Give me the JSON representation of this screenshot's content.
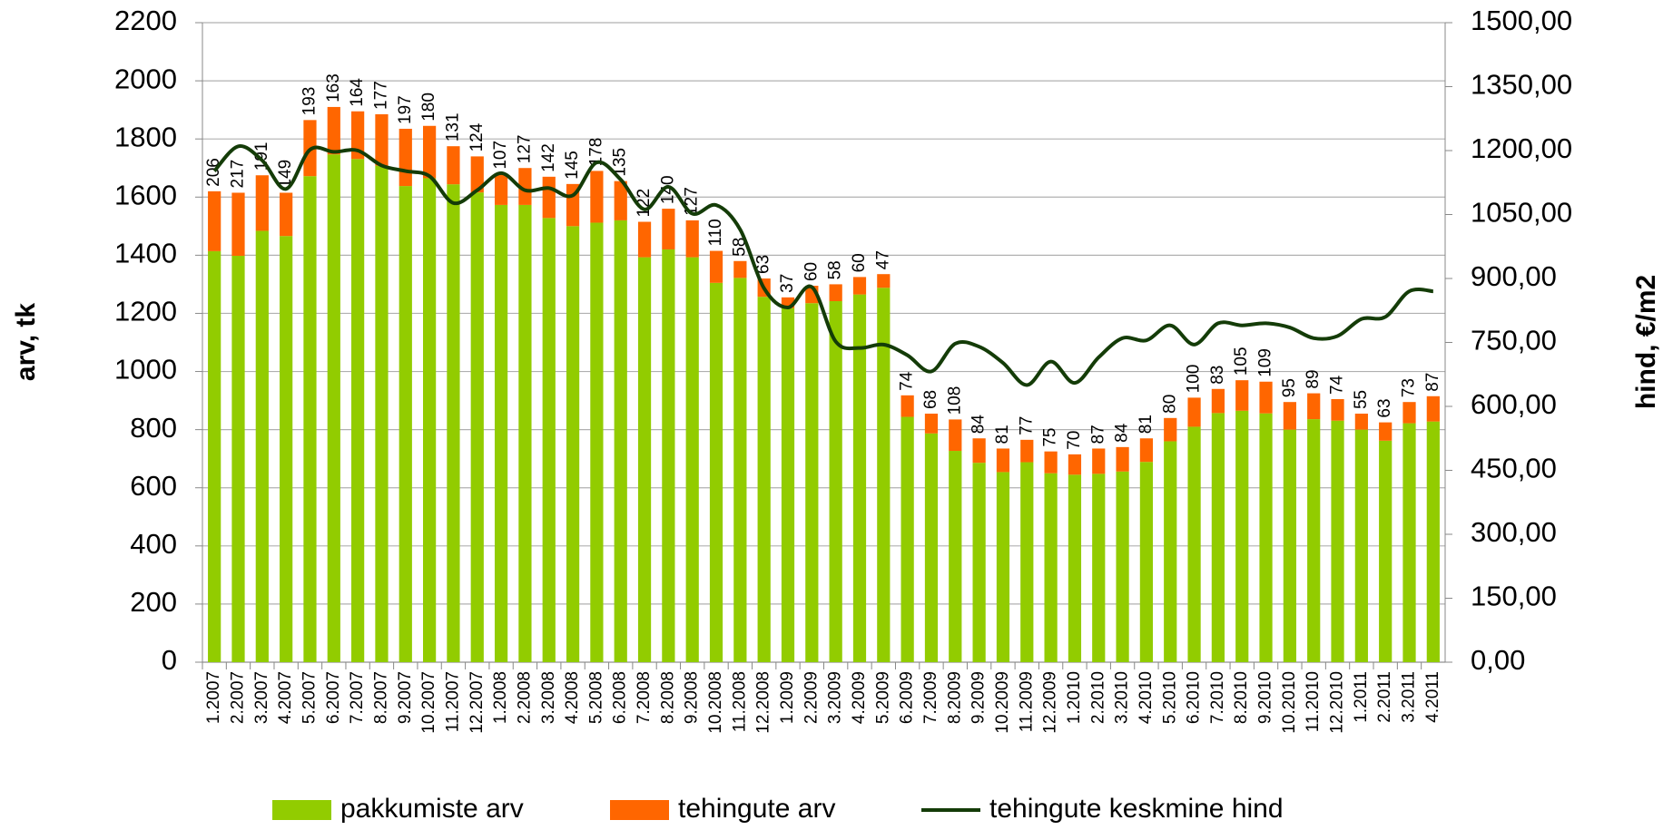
{
  "chart_data": {
    "type": "bar-line",
    "y_label": "arv, tk",
    "y2_label": "hind, €/m2",
    "categories": [
      "1.2007",
      "2.2007",
      "3.2007",
      "4.2007",
      "5.2007",
      "6.2007",
      "7.2007",
      "8.2007",
      "9.2007",
      "10.2007",
      "11.2007",
      "12.2007",
      "1.2008",
      "2.2008",
      "3.2008",
      "4.2008",
      "5.2008",
      "6.2008",
      "7.2008",
      "8.2008",
      "9.2008",
      "10.2008",
      "11.2008",
      "12.2008",
      "1.2009",
      "2.2009",
      "3.2009",
      "4.2009",
      "5.2009",
      "6.2009",
      "7.2009",
      "8.2009",
      "9.2009",
      "10.2009",
      "11.2009",
      "12.2009",
      "1.2010",
      "2.2010",
      "3.2010",
      "4.2010",
      "5.2010",
      "6.2010",
      "7.2010",
      "8.2010",
      "9.2010",
      "10.2010",
      "11.2010",
      "12.2010",
      "1.2011",
      "2.2011",
      "3.2011",
      "4.2011"
    ],
    "series": [
      {
        "name": "pakkumiste arv",
        "color": "#92cc00",
        "type": "bar",
        "values": [
          1414,
          1398,
          1484,
          1466,
          1672,
          1747,
          1731,
          1708,
          1638,
          1665,
          1644,
          1616,
          1573,
          1573,
          1528,
          1500,
          1512,
          1520,
          1393,
          1420,
          1393,
          1305,
          1322,
          1257,
          1218,
          1235,
          1242,
          1265,
          1288,
          844,
          787,
          727,
          686,
          654,
          688,
          650,
          645,
          648,
          656,
          689,
          760,
          810,
          857,
          865,
          856,
          800,
          836,
          831,
          800,
          762,
          822,
          828
        ]
      },
      {
        "name": "tehingute arv",
        "color": "#ff6600",
        "type": "bar",
        "values": [
          206,
          217,
          191,
          149,
          193,
          163,
          164,
          177,
          197,
          180,
          131,
          124,
          107,
          127,
          142,
          145,
          178,
          135,
          122,
          140,
          127,
          110,
          58,
          63,
          37,
          60,
          58,
          60,
          47,
          74,
          68,
          108,
          84,
          81,
          77,
          75,
          70,
          87,
          84,
          81,
          80,
          100,
          83,
          105,
          109,
          95,
          89,
          74,
          55,
          63,
          73,
          87
        ]
      },
      {
        "name": "tehingute keskmine hind",
        "color": "#143c08",
        "type": "line",
        "axis": "y2",
        "values": [
          1152,
          1210,
          1177,
          1110,
          1202,
          1197,
          1200,
          1165,
          1152,
          1140,
          1077,
          1107,
          1147,
          1107,
          1112,
          1095,
          1172,
          1132,
          1062,
          1115,
          1052,
          1072,
          1015,
          877,
          832,
          880,
          752,
          737,
          745,
          720,
          682,
          747,
          740,
          702,
          650,
          705,
          655,
          715,
          760,
          755,
          790,
          745,
          795,
          790,
          795,
          785,
          760,
          765,
          805,
          810,
          870,
          870
        ]
      }
    ],
    "ylim": [
      0,
      2200
    ],
    "yticks": [
      0,
      200,
      400,
      600,
      800,
      1000,
      1200,
      1400,
      1600,
      1800,
      2000,
      2200
    ],
    "y2lim": [
      0,
      1500
    ],
    "y2ticks": [
      {
        "value": 0,
        "label": "0,00"
      },
      {
        "value": 150,
        "label": "150,00"
      },
      {
        "value": 300,
        "label": "300,00"
      },
      {
        "value": 450,
        "label": "450,00"
      },
      {
        "value": 600,
        "label": "600,00"
      },
      {
        "value": 750,
        "label": "750,00"
      },
      {
        "value": 900,
        "label": "900,00"
      },
      {
        "value": 1050,
        "label": "1050,00"
      },
      {
        "value": 1200,
        "label": "1200,00"
      },
      {
        "value": 1350,
        "label": "1350,00"
      },
      {
        "value": 1500,
        "label": "1500,00"
      }
    ],
    "grid": true,
    "legend": "bottom"
  }
}
